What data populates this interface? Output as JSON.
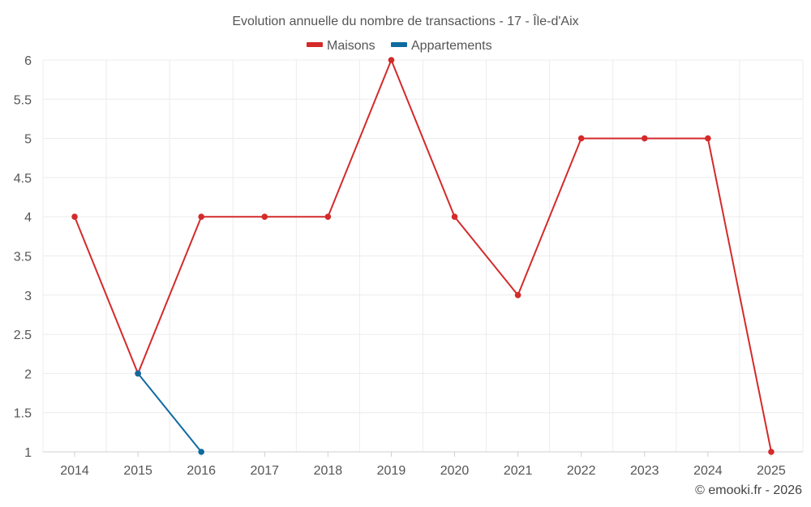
{
  "chart_data": {
    "type": "line",
    "title": "Evolution annuelle du nombre de transactions - 17 - Île-d'Aix",
    "xlabel": "",
    "ylabel": "",
    "categories": [
      "2014",
      "2015",
      "2016",
      "2017",
      "2018",
      "2019",
      "2020",
      "2021",
      "2022",
      "2023",
      "2024",
      "2025"
    ],
    "ylim": [
      1,
      6
    ],
    "yticks": [
      "1",
      "1.5",
      "2",
      "2.5",
      "3",
      "3.5",
      "4",
      "4.5",
      "5",
      "5.5",
      "6"
    ],
    "grid": true,
    "legend_position": "top-center",
    "series": [
      {
        "name": "Maisons",
        "color": "#d42a2a",
        "values": [
          4,
          2,
          4,
          4,
          4,
          6,
          4,
          3,
          5,
          5,
          5,
          1
        ]
      },
      {
        "name": "Appartements",
        "color": "#0f6aa0",
        "values": [
          null,
          2,
          1,
          null,
          null,
          null,
          null,
          null,
          null,
          null,
          null,
          null
        ]
      }
    ]
  },
  "credit": "© emooki.fr - 2026"
}
